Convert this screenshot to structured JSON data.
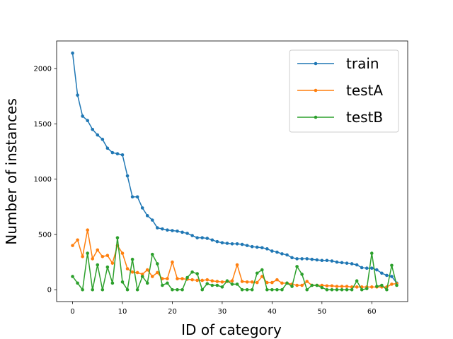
{
  "chart_data": {
    "type": "line",
    "title": "",
    "xlabel": "ID of category",
    "ylabel": "Number of instances",
    "xlim": [
      -3.2,
      67.2
    ],
    "ylim": [
      -107,
      2250
    ],
    "xticks": [
      0,
      10,
      20,
      30,
      40,
      50,
      60
    ],
    "yticks": [
      0,
      500,
      1000,
      1500,
      2000
    ],
    "legend_position": "top-right",
    "grid": false,
    "series": [
      {
        "name": "train",
        "color": "#1f77b4",
        "values": [
          2140,
          1760,
          1570,
          1530,
          1450,
          1400,
          1360,
          1280,
          1240,
          1230,
          1220,
          1030,
          840,
          840,
          740,
          670,
          630,
          560,
          550,
          540,
          535,
          530,
          520,
          510,
          490,
          470,
          470,
          465,
          450,
          435,
          425,
          420,
          415,
          415,
          410,
          400,
          390,
          385,
          380,
          370,
          350,
          340,
          325,
          315,
          290,
          280,
          280,
          280,
          275,
          270,
          265,
          265,
          260,
          250,
          245,
          240,
          235,
          225,
          200,
          195,
          195,
          180,
          150,
          130,
          120,
          60
        ]
      },
      {
        "name": "testA",
        "color": "#ff7f0e",
        "values": [
          400,
          450,
          300,
          540,
          280,
          360,
          300,
          310,
          240,
          400,
          330,
          190,
          160,
          155,
          140,
          180,
          120,
          155,
          100,
          100,
          250,
          100,
          100,
          95,
          90,
          85,
          85,
          90,
          80,
          75,
          70,
          75,
          80,
          225,
          75,
          70,
          70,
          65,
          120,
          65,
          65,
          90,
          60,
          60,
          50,
          40,
          40,
          75,
          40,
          40,
          40,
          35,
          35,
          30,
          30,
          30,
          25,
          25,
          25,
          25,
          25,
          25,
          25,
          25,
          50,
          55
        ]
      },
      {
        "name": "testB",
        "color": "#2ca02c",
        "values": [
          120,
          60,
          0,
          330,
          0,
          225,
          0,
          205,
          60,
          470,
          70,
          0,
          275,
          0,
          120,
          60,
          320,
          235,
          40,
          60,
          0,
          0,
          0,
          110,
          160,
          145,
          0,
          55,
          40,
          40,
          25,
          80,
          50,
          50,
          0,
          0,
          0,
          150,
          180,
          0,
          0,
          0,
          0,
          60,
          30,
          210,
          140,
          0,
          40,
          40,
          20,
          0,
          0,
          0,
          0,
          0,
          0,
          80,
          0,
          10,
          330,
          30,
          40,
          0,
          220,
          40
        ]
      }
    ]
  }
}
